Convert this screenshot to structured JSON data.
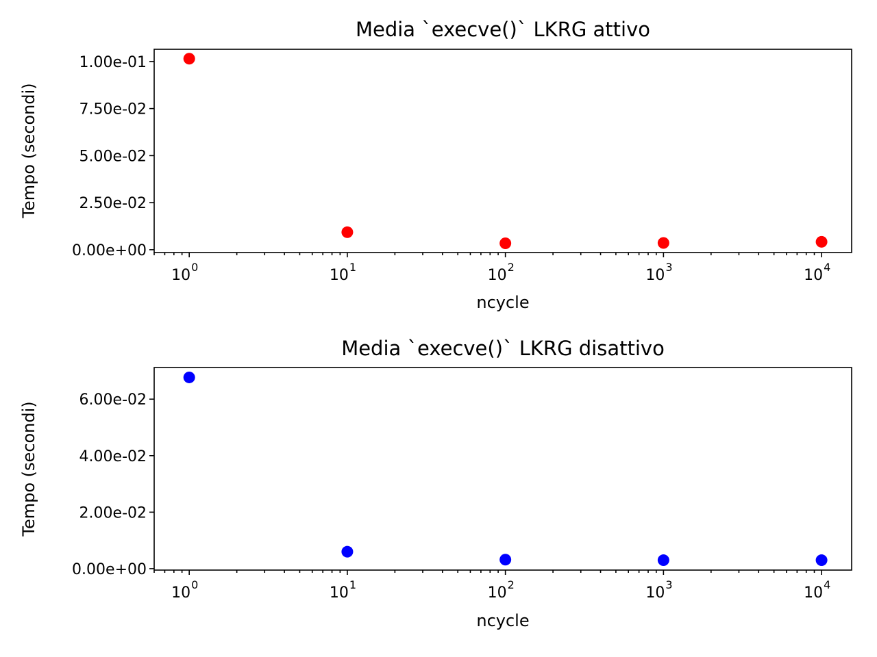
{
  "chart_data": [
    {
      "type": "scatter",
      "title": "Media `execve()` LKRG attivo",
      "xlabel": "ncycle",
      "ylabel": "Tempo (secondi)",
      "xscale": "log",
      "xlim": [
        0.6,
        15500
      ],
      "ylim": [
        -0.0015,
        0.1065
      ],
      "x": [
        1,
        10,
        100,
        1000,
        10000
      ],
      "y": [
        0.1015,
        0.0093,
        0.0034,
        0.0036,
        0.0042
      ],
      "color": "#ff0000",
      "x_ticks": [
        {
          "value": 1,
          "base": "10",
          "exp": "0"
        },
        {
          "value": 10,
          "base": "10",
          "exp": "1"
        },
        {
          "value": 100,
          "base": "10",
          "exp": "2"
        },
        {
          "value": 1000,
          "base": "10",
          "exp": "3"
        },
        {
          "value": 10000,
          "base": "10",
          "exp": "4"
        }
      ],
      "y_ticks": [
        {
          "value": 0.0,
          "label": "0.00e+00"
        },
        {
          "value": 0.025,
          "label": "2.50e-02"
        },
        {
          "value": 0.05,
          "label": "5.00e-02"
        },
        {
          "value": 0.075,
          "label": "7.50e-02"
        },
        {
          "value": 0.1,
          "label": "1.00e-01"
        }
      ],
      "grid": false
    },
    {
      "type": "scatter",
      "title": "Media `execve()` LKRG disattivo",
      "xlabel": "ncycle",
      "ylabel": "Tempo (secondi)",
      "xscale": "log",
      "xlim": [
        0.6,
        15500
      ],
      "ylim": [
        -0.0005,
        0.0712
      ],
      "x": [
        1,
        10,
        100,
        1000,
        10000
      ],
      "y": [
        0.0677,
        0.006,
        0.0032,
        0.003,
        0.003
      ],
      "color": "#0000ff",
      "x_ticks": [
        {
          "value": 1,
          "base": "10",
          "exp": "0"
        },
        {
          "value": 10,
          "base": "10",
          "exp": "1"
        },
        {
          "value": 100,
          "base": "10",
          "exp": "2"
        },
        {
          "value": 1000,
          "base": "10",
          "exp": "3"
        },
        {
          "value": 10000,
          "base": "10",
          "exp": "4"
        }
      ],
      "y_ticks": [
        {
          "value": 0.0,
          "label": "0.00e+00"
        },
        {
          "value": 0.02,
          "label": "2.00e-02"
        },
        {
          "value": 0.04,
          "label": "4.00e-02"
        },
        {
          "value": 0.06,
          "label": "6.00e-02"
        }
      ],
      "grid": false
    }
  ]
}
